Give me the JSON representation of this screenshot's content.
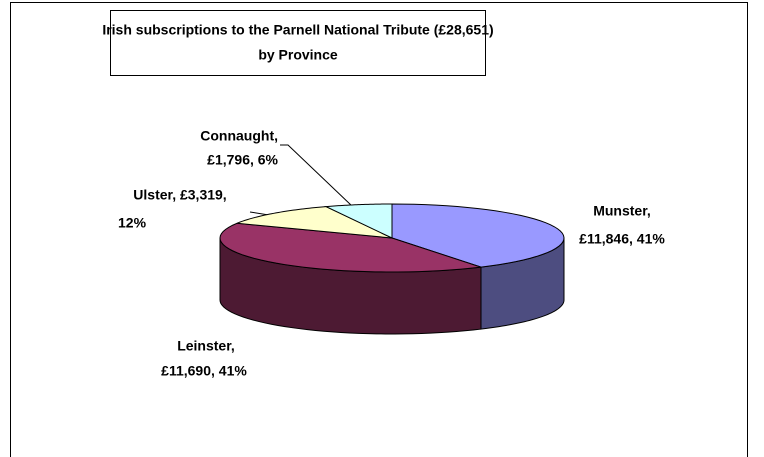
{
  "chart_data": {
    "type": "pie3d",
    "title": [
      "Irish subscriptions to the Parnell National Tribute (£28,651)",
      "by Province"
    ],
    "values": [
      11846,
      11690,
      3319,
      1796
    ],
    "value_labels": [
      [
        "Munster,",
        "£11,846, 41%"
      ],
      [
        "Leinster,",
        "£11,690, 41%"
      ],
      [
        "Ulster, £3,319,",
        "12%"
      ],
      [
        "Connaught,",
        "£1,796, 6%"
      ]
    ],
    "colors": [
      "#9999ff",
      "#993366",
      "#ffffcc",
      "#ccffff"
    ],
    "side_colors": [
      "#4d4d80",
      "#4d1a33",
      "#80805f",
      "#668080"
    ]
  }
}
